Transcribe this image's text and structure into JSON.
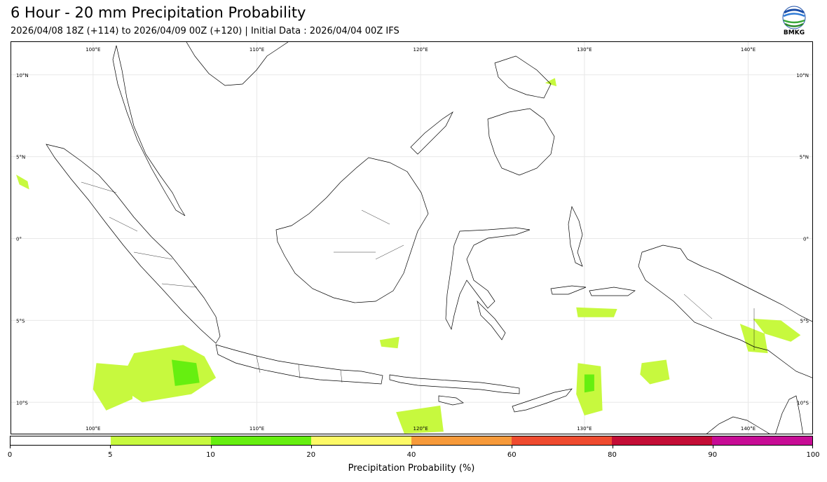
{
  "header": {
    "title": "6 Hour - 20 mm Precipitation Probability",
    "subtitle": "2026/04/08 18Z (+114) to 2026/04/09 00Z (+120) | Initial Data : 2026/04/04 00Z IFS"
  },
  "logo": {
    "text": "BMKG",
    "icon": "bmkg-logo-icon"
  },
  "map": {
    "extent": {
      "lon": [
        95,
        144
      ],
      "lat": [
        -12,
        12
      ]
    },
    "lon_ticks": [
      {
        "value": 100,
        "label": "100°E"
      },
      {
        "value": 110,
        "label": "110°E"
      },
      {
        "value": 120,
        "label": "120°E"
      },
      {
        "value": 130,
        "label": "130°E"
      },
      {
        "value": 140,
        "label": "140°E"
      }
    ],
    "lat_ticks": [
      {
        "value": 10,
        "label": "10°N"
      },
      {
        "value": 5,
        "label": "5°N"
      },
      {
        "value": 0,
        "label": "0°"
      },
      {
        "value": -5,
        "label": "5°S"
      },
      {
        "value": -10,
        "label": "10°S"
      }
    ],
    "gridlines": true,
    "colors": {
      "coast": "#000000",
      "grid": "#e8e8e8"
    },
    "precip_zones": [
      {
        "name": "sumatra-south",
        "level": 5,
        "points": [
          [
            102.5,
            -7.0
          ],
          [
            105.5,
            -6.5
          ],
          [
            106.8,
            -7.2
          ],
          [
            107.5,
            -8.5
          ],
          [
            106.0,
            -9.5
          ],
          [
            103.0,
            -10.0
          ],
          [
            101.5,
            -9.0
          ]
        ]
      },
      {
        "name": "sumatra-south-core",
        "level": 10,
        "points": [
          [
            104.8,
            -7.4
          ],
          [
            106.3,
            -7.6
          ],
          [
            106.5,
            -8.8
          ],
          [
            105.0,
            -9.0
          ]
        ]
      },
      {
        "name": "indian-ocean-west",
        "level": 5,
        "points": [
          [
            100.2,
            -7.6
          ],
          [
            102.5,
            -7.8
          ],
          [
            102.4,
            -9.8
          ],
          [
            100.8,
            -10.5
          ],
          [
            100.0,
            -9.2
          ]
        ]
      },
      {
        "name": "timor-sea",
        "level": 5,
        "points": [
          [
            129.6,
            -7.6
          ],
          [
            131.0,
            -7.8
          ],
          [
            131.1,
            -10.5
          ],
          [
            130.0,
            -10.8
          ],
          [
            129.5,
            -9.5
          ]
        ]
      },
      {
        "name": "timor-sea-core",
        "level": 10,
        "points": [
          [
            130.0,
            -8.3
          ],
          [
            130.6,
            -8.3
          ],
          [
            130.6,
            -9.3
          ],
          [
            130.0,
            -9.4
          ]
        ]
      },
      {
        "name": "arafura-sea",
        "level": 5,
        "points": [
          [
            133.5,
            -7.6
          ],
          [
            135.0,
            -7.4
          ],
          [
            135.2,
            -8.6
          ],
          [
            134.0,
            -8.9
          ],
          [
            133.4,
            -8.3
          ]
        ]
      },
      {
        "name": "savu-sea",
        "level": 5,
        "points": [
          [
            118.5,
            -10.6
          ],
          [
            121.2,
            -10.2
          ],
          [
            121.4,
            -11.8
          ],
          [
            119.0,
            -11.9
          ]
        ]
      },
      {
        "name": "papua-south",
        "level": 5,
        "points": [
          [
            139.5,
            -5.2
          ],
          [
            141.0,
            -5.8
          ],
          [
            141.2,
            -7.0
          ],
          [
            140.0,
            -6.9
          ]
        ]
      },
      {
        "name": "west-papua-sea",
        "level": 5,
        "points": [
          [
            140.3,
            -4.9
          ],
          [
            142.0,
            -5.0
          ],
          [
            143.2,
            -5.9
          ],
          [
            142.6,
            -6.3
          ],
          [
            141.0,
            -5.8
          ]
        ]
      },
      {
        "name": "banda-sea-band",
        "level": 5,
        "points": [
          [
            129.5,
            -4.2
          ],
          [
            132.0,
            -4.3
          ],
          [
            131.8,
            -4.8
          ],
          [
            129.6,
            -4.8
          ]
        ]
      },
      {
        "name": "flores-sea",
        "level": 5,
        "points": [
          [
            117.5,
            -6.2
          ],
          [
            118.7,
            -6.0
          ],
          [
            118.6,
            -6.7
          ],
          [
            117.6,
            -6.6
          ]
        ]
      },
      {
        "name": "north-pacific",
        "level": 5,
        "points": [
          [
            127.6,
            9.5
          ],
          [
            128.3,
            9.3
          ],
          [
            128.2,
            9.8
          ]
        ]
      },
      {
        "name": "sumatra-north",
        "level": 5,
        "points": [
          [
            95.3,
            3.9
          ],
          [
            96.0,
            3.5
          ],
          [
            96.1,
            3.0
          ],
          [
            95.5,
            3.3
          ]
        ]
      }
    ]
  },
  "colorbar": {
    "label": "Precipitation Probability (%)",
    "bounds": [
      0,
      5,
      10,
      20,
      40,
      60,
      80,
      90,
      100
    ],
    "tick_labels": [
      "0",
      "5",
      "10",
      "20",
      "40",
      "60",
      "80",
      "90",
      "100"
    ],
    "colors": [
      "#ffffff",
      "#c7f93e",
      "#66ef10",
      "#fdf966",
      "#f79a3a",
      "#ef4b2f",
      "#c40d36",
      "#c70c95"
    ]
  }
}
